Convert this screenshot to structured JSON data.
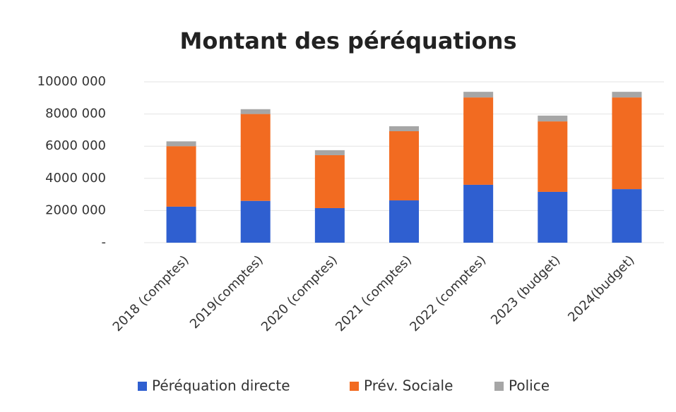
{
  "chart_data": {
    "type": "stacked_bar",
    "title": "Montant des péréquations",
    "categories": [
      "2018 (comptes)",
      "2019(comptes)",
      "2020 (comptes)",
      "2021 (comptes)",
      "2022 (comptes)",
      "2023 (budget)",
      "2024(budget)"
    ],
    "series": [
      {
        "name": "Péréquation directe",
        "color": "#2f5fd0",
        "values": [
          2240000,
          2600000,
          2150000,
          2630000,
          3600000,
          3160000,
          3330000
        ]
      },
      {
        "name": "Prév. Sociale",
        "color": "#f26b21",
        "values": [
          3760000,
          5400000,
          3290000,
          4300000,
          5430000,
          4380000,
          5700000
        ]
      },
      {
        "name": "Police",
        "color": "#a6a6a6",
        "values": [
          300000,
          300000,
          310000,
          310000,
          350000,
          360000,
          350000
        ]
      }
    ],
    "ylim": [
      0,
      10000000
    ],
    "yticks": [
      {
        "value": 0,
        "label": "-"
      },
      {
        "value": 2000000,
        "label": "2000 000"
      },
      {
        "value": 4000000,
        "label": "4000 000"
      },
      {
        "value": 6000000,
        "label": "6000 000"
      },
      {
        "value": 8000000,
        "label": "8000 000"
      },
      {
        "value": 10000000,
        "label": "10000 000"
      }
    ],
    "grid": true,
    "legend": "bottom"
  }
}
